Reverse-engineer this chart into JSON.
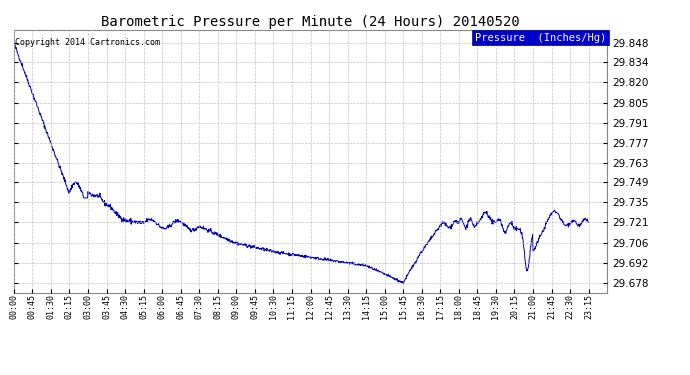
{
  "title": "Barometric Pressure per Minute (24 Hours) 20140520",
  "copyright": "Copyright 2014 Cartronics.com",
  "legend_label": "Pressure  (Inches/Hg)",
  "yticks": [
    29.678,
    29.692,
    29.706,
    29.721,
    29.735,
    29.749,
    29.763,
    29.777,
    29.791,
    29.805,
    29.82,
    29.834,
    29.848
  ],
  "ylim": [
    29.671,
    29.857
  ],
  "line_color": "#0000bb",
  "bg_color": "#ffffff",
  "grid_color": "#bbbbbb",
  "title_color": "#000000",
  "copyright_color": "#000000",
  "legend_bg": "#0000cc",
  "legend_text_color": "#ffffff",
  "xtick_labels": [
    "00:00",
    "00:45",
    "01:30",
    "02:15",
    "03:00",
    "03:45",
    "04:30",
    "05:15",
    "06:00",
    "06:45",
    "07:30",
    "08:15",
    "09:00",
    "09:45",
    "10:30",
    "11:15",
    "12:00",
    "12:45",
    "13:30",
    "14:15",
    "15:00",
    "15:45",
    "16:30",
    "17:15",
    "18:00",
    "18:45",
    "19:30",
    "20:15",
    "21:00",
    "21:45",
    "22:30",
    "23:15"
  ]
}
